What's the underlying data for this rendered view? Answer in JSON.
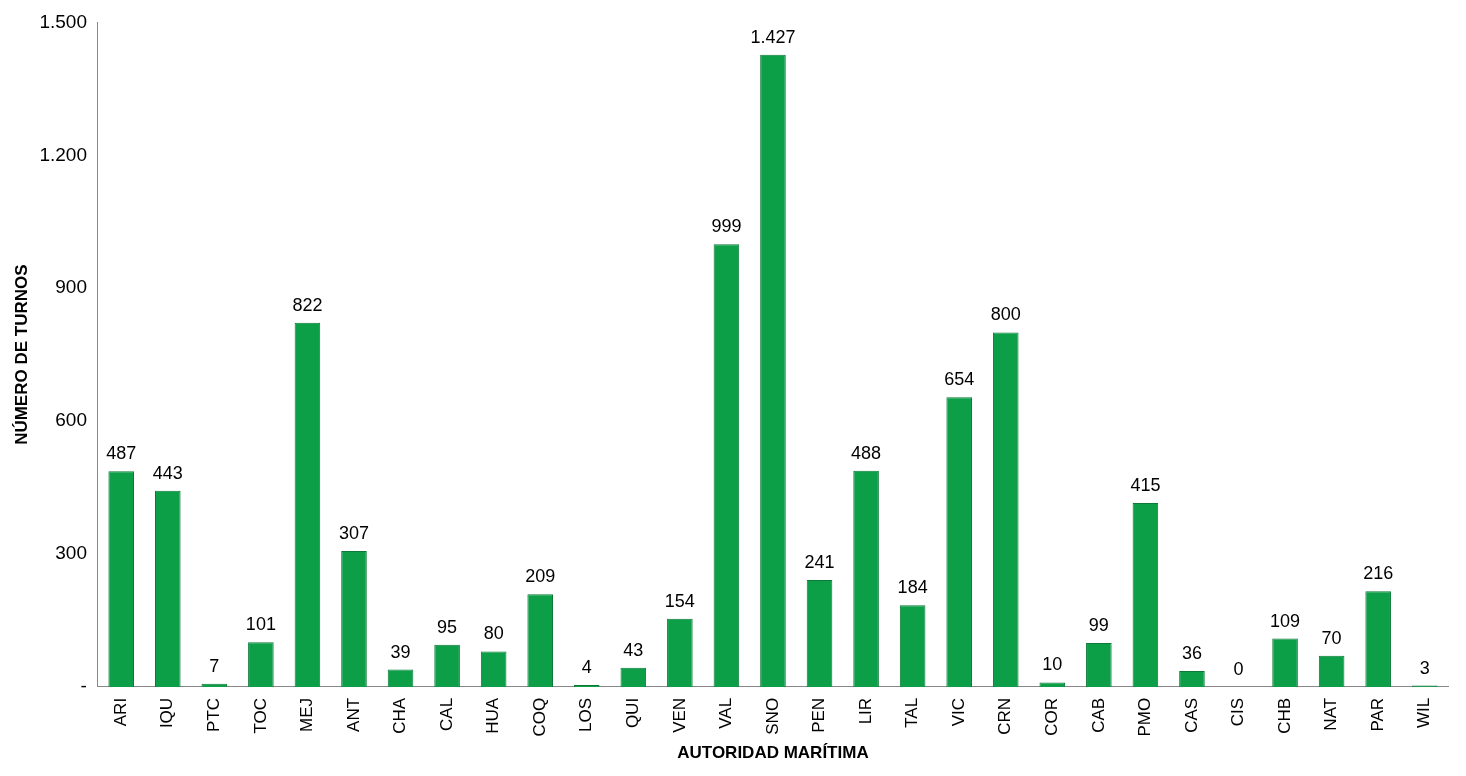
{
  "chart_data": {
    "type": "bar",
    "xlabel": "AUTORIDAD MARÍTIMA",
    "ylabel": "NÚMERO DE TURNOS",
    "categories": [
      "ARI",
      "IQU",
      "PTC",
      "TOC",
      "MEJ",
      "ANT",
      "CHA",
      "CAL",
      "HUA",
      "COQ",
      "LOS",
      "QUI",
      "VEN",
      "VAL",
      "SNO",
      "PEN",
      "LIR",
      "TAL",
      "VIC",
      "CRN",
      "COR",
      "CAB",
      "PMO",
      "CAS",
      "CIS",
      "CHB",
      "NAT",
      "PAR",
      "WIL"
    ],
    "values": [
      487,
      443,
      7,
      101,
      822,
      307,
      39,
      95,
      80,
      209,
      4,
      43,
      154,
      999,
      1427,
      241,
      488,
      184,
      654,
      800,
      10,
      99,
      415,
      36,
      0,
      109,
      70,
      216,
      3
    ],
    "value_labels": [
      "487",
      "443",
      "7",
      "101",
      "822",
      "307",
      "39",
      "95",
      "80",
      "209",
      "4",
      "43",
      "154",
      "999",
      "1.427",
      "241",
      "488",
      "184",
      "654",
      "800",
      "10",
      "99",
      "415",
      "36",
      "0",
      "109",
      "70",
      "216",
      "3"
    ],
    "color": "#0c9f48",
    "ylim": [
      0,
      1500
    ],
    "yticks": [
      {
        "value": 0,
        "label": "-"
      },
      300,
      600,
      900,
      {
        "value": 1200,
        "label": "1.200"
      },
      {
        "value": 1500,
        "label": "1.500"
      }
    ]
  }
}
